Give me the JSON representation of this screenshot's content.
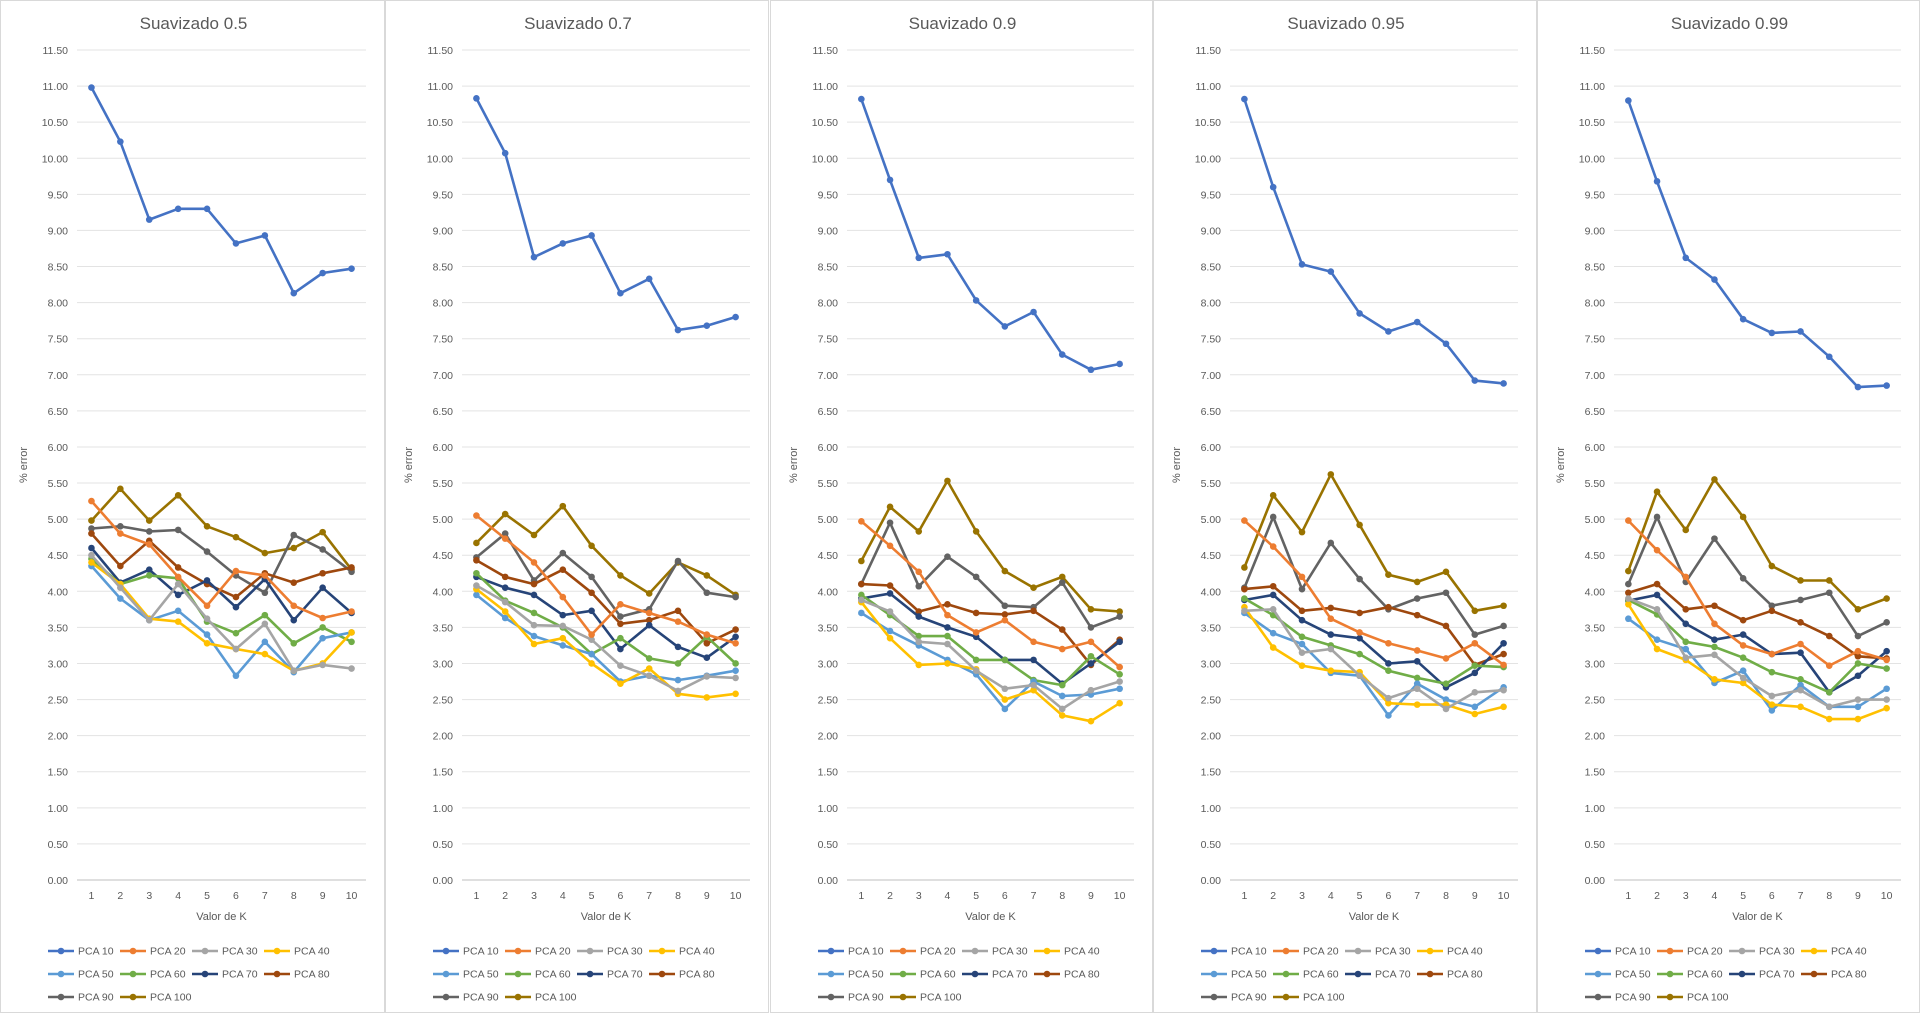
{
  "chart_data": [
    {
      "type": "line",
      "title": "Suavizado 0.5",
      "xlabel": "Valor de K",
      "ylabel": "% error",
      "x": [
        1,
        2,
        3,
        4,
        5,
        6,
        7,
        8,
        9,
        10
      ],
      "ylim": [
        0,
        11.5
      ],
      "yticks": [
        "0.00",
        "0.50",
        "1.00",
        "1.50",
        "2.00",
        "2.50",
        "3.00",
        "3.50",
        "4.00",
        "4.50",
        "5.00",
        "5.50",
        "6.00",
        "6.50",
        "7.00",
        "7.50",
        "8.00",
        "8.50",
        "9.00",
        "9.50",
        "10.00",
        "10.50",
        "11.00",
        "11.50"
      ],
      "grid": true,
      "legend": "bottom",
      "series": [
        {
          "name": "PCA 10",
          "color": "#4472c4",
          "values": [
            10.98,
            10.23,
            9.15,
            9.3,
            9.3,
            8.82,
            8.93,
            8.13,
            8.41,
            8.47
          ]
        },
        {
          "name": "PCA 20",
          "color": "#ed7d31",
          "values": [
            5.25,
            4.8,
            4.65,
            4.2,
            3.8,
            4.28,
            4.22,
            3.8,
            3.63,
            3.72
          ]
        },
        {
          "name": "PCA 30",
          "color": "#a5a5a5",
          "values": [
            4.5,
            4.05,
            3.6,
            4.1,
            3.62,
            3.2,
            3.55,
            2.9,
            2.98,
            2.93
          ]
        },
        {
          "name": "PCA 40",
          "color": "#ffc000",
          "values": [
            4.4,
            4.1,
            3.62,
            3.58,
            3.28,
            3.2,
            3.13,
            2.9,
            3.0,
            3.43
          ]
        },
        {
          "name": "PCA 50",
          "color": "#5b9bd5",
          "values": [
            4.35,
            3.9,
            3.6,
            3.73,
            3.4,
            2.83,
            3.3,
            2.88,
            3.35,
            3.43
          ]
        },
        {
          "name": "PCA 60",
          "color": "#70ad47",
          "values": [
            4.45,
            4.1,
            4.22,
            4.18,
            3.58,
            3.42,
            3.67,
            3.28,
            3.5,
            3.3
          ]
        },
        {
          "name": "PCA 70",
          "color": "#264478",
          "values": [
            4.6,
            4.12,
            4.3,
            3.95,
            4.15,
            3.78,
            4.17,
            3.6,
            4.05,
            3.7
          ]
        },
        {
          "name": "PCA 80",
          "color": "#9e480e",
          "values": [
            4.8,
            4.35,
            4.7,
            4.33,
            4.1,
            3.92,
            4.25,
            4.12,
            4.25,
            4.33
          ]
        },
        {
          "name": "PCA 90",
          "color": "#636363",
          "values": [
            4.87,
            4.9,
            4.83,
            4.85,
            4.55,
            4.22,
            3.98,
            4.78,
            4.58,
            4.27
          ]
        },
        {
          "name": "PCA 100",
          "color": "#997300",
          "values": [
            4.98,
            5.42,
            4.98,
            5.33,
            4.9,
            4.75,
            4.53,
            4.6,
            4.82,
            4.3
          ]
        }
      ]
    },
    {
      "type": "line",
      "title": "Suavizado 0.7",
      "xlabel": "Valor de K",
      "ylabel": "% error",
      "x": [
        1,
        2,
        3,
        4,
        5,
        6,
        7,
        8,
        9,
        10
      ],
      "ylim": [
        0,
        11.5
      ],
      "yticks": [
        "0.00",
        "0.50",
        "1.00",
        "1.50",
        "2.00",
        "2.50",
        "3.00",
        "3.50",
        "4.00",
        "4.50",
        "5.00",
        "5.50",
        "6.00",
        "6.50",
        "7.00",
        "7.50",
        "8.00",
        "8.50",
        "9.00",
        "9.50",
        "10.00",
        "10.50",
        "11.00",
        "11.50"
      ],
      "grid": true,
      "legend": "bottom",
      "series": [
        {
          "name": "PCA 10",
          "color": "#4472c4",
          "values": [
            10.83,
            10.07,
            8.63,
            8.82,
            8.93,
            8.13,
            8.33,
            7.62,
            7.68,
            7.8
          ]
        },
        {
          "name": "PCA 20",
          "color": "#ed7d31",
          "values": [
            5.05,
            4.73,
            4.4,
            3.92,
            3.4,
            3.82,
            3.7,
            3.58,
            3.4,
            3.28
          ]
        },
        {
          "name": "PCA 30",
          "color": "#a5a5a5",
          "values": [
            4.08,
            3.85,
            3.53,
            3.52,
            3.33,
            2.97,
            2.83,
            2.62,
            2.82,
            2.8
          ]
        },
        {
          "name": "PCA 40",
          "color": "#ffc000",
          "values": [
            4.03,
            3.72,
            3.27,
            3.35,
            3.0,
            2.72,
            2.93,
            2.58,
            2.53,
            2.58
          ]
        },
        {
          "name": "PCA 50",
          "color": "#5b9bd5",
          "values": [
            3.95,
            3.63,
            3.38,
            3.25,
            3.13,
            2.75,
            2.83,
            2.77,
            2.83,
            2.9
          ]
        },
        {
          "name": "PCA 60",
          "color": "#70ad47",
          "values": [
            4.25,
            3.87,
            3.7,
            3.5,
            3.13,
            3.35,
            3.07,
            3.0,
            3.37,
            3.0
          ]
        },
        {
          "name": "PCA 70",
          "color": "#264478",
          "values": [
            4.2,
            4.05,
            3.95,
            3.67,
            3.73,
            3.2,
            3.53,
            3.23,
            3.08,
            3.37
          ]
        },
        {
          "name": "PCA 80",
          "color": "#9e480e",
          "values": [
            4.43,
            4.2,
            4.1,
            4.3,
            3.98,
            3.55,
            3.6,
            3.73,
            3.28,
            3.47
          ]
        },
        {
          "name": "PCA 90",
          "color": "#636363",
          "values": [
            4.47,
            4.8,
            4.15,
            4.53,
            4.2,
            3.65,
            3.75,
            4.42,
            3.98,
            3.92
          ]
        },
        {
          "name": "PCA 100",
          "color": "#997300",
          "values": [
            4.67,
            5.07,
            4.78,
            5.18,
            4.63,
            4.22,
            3.97,
            4.4,
            4.22,
            3.95
          ]
        }
      ]
    },
    {
      "type": "line",
      "title": "Suavizado 0.9",
      "xlabel": "Valor de K",
      "ylabel": "% error",
      "x": [
        1,
        2,
        3,
        4,
        5,
        6,
        7,
        8,
        9,
        10
      ],
      "ylim": [
        0,
        11.5
      ],
      "yticks": [
        "0.00",
        "0.50",
        "1.00",
        "1.50",
        "2.00",
        "2.50",
        "3.00",
        "3.50",
        "4.00",
        "4.50",
        "5.00",
        "5.50",
        "6.00",
        "6.50",
        "7.00",
        "7.50",
        "8.00",
        "8.50",
        "9.00",
        "9.50",
        "10.00",
        "10.50",
        "11.00",
        "11.50"
      ],
      "grid": true,
      "legend": "bottom",
      "series": [
        {
          "name": "PCA 10",
          "color": "#4472c4",
          "values": [
            10.82,
            9.7,
            8.62,
            8.67,
            8.03,
            7.67,
            7.87,
            7.28,
            7.07,
            7.15
          ]
        },
        {
          "name": "PCA 20",
          "color": "#ed7d31",
          "values": [
            4.97,
            4.63,
            4.27,
            3.67,
            3.43,
            3.6,
            3.3,
            3.2,
            3.3,
            2.95
          ]
        },
        {
          "name": "PCA 30",
          "color": "#a5a5a5",
          "values": [
            3.88,
            3.72,
            3.3,
            3.27,
            2.9,
            2.65,
            2.7,
            2.37,
            2.63,
            2.75
          ]
        },
        {
          "name": "PCA 40",
          "color": "#ffc000",
          "values": [
            3.85,
            3.35,
            2.98,
            3.0,
            2.92,
            2.5,
            2.63,
            2.28,
            2.2,
            2.45
          ]
        },
        {
          "name": "PCA 50",
          "color": "#5b9bd5",
          "values": [
            3.7,
            3.45,
            3.25,
            3.05,
            2.85,
            2.37,
            2.75,
            2.55,
            2.57,
            2.65
          ]
        },
        {
          "name": "PCA 60",
          "color": "#70ad47",
          "values": [
            3.95,
            3.67,
            3.38,
            3.38,
            3.05,
            3.05,
            2.77,
            2.7,
            3.1,
            2.85
          ]
        },
        {
          "name": "PCA 70",
          "color": "#264478",
          "values": [
            3.9,
            3.97,
            3.65,
            3.5,
            3.37,
            3.05,
            3.05,
            2.72,
            3.0,
            3.3
          ]
        },
        {
          "name": "PCA 80",
          "color": "#9e480e",
          "values": [
            4.1,
            4.08,
            3.72,
            3.82,
            3.7,
            3.68,
            3.73,
            3.47,
            2.98,
            3.33
          ]
        },
        {
          "name": "PCA 90",
          "color": "#636363",
          "values": [
            4.1,
            4.95,
            4.07,
            4.48,
            4.2,
            3.8,
            3.78,
            4.12,
            3.5,
            3.65
          ]
        },
        {
          "name": "PCA 100",
          "color": "#997300",
          "values": [
            4.42,
            5.17,
            4.83,
            5.53,
            4.83,
            4.28,
            4.05,
            4.2,
            3.75,
            3.72
          ]
        }
      ]
    },
    {
      "type": "line",
      "title": "Suavizado 0.95",
      "xlabel": "Valor de K",
      "ylabel": "% error",
      "x": [
        1,
        2,
        3,
        4,
        5,
        6,
        7,
        8,
        9,
        10
      ],
      "ylim": [
        0,
        11.5
      ],
      "yticks": [
        "0.00",
        "0.50",
        "1.00",
        "1.50",
        "2.00",
        "2.50",
        "3.00",
        "3.50",
        "4.00",
        "4.50",
        "5.00",
        "5.50",
        "6.00",
        "6.50",
        "7.00",
        "7.50",
        "8.00",
        "8.50",
        "9.00",
        "9.50",
        "10.00",
        "10.50",
        "11.00",
        "11.50"
      ],
      "grid": true,
      "legend": "bottom",
      "series": [
        {
          "name": "PCA 10",
          "color": "#4472c4",
          "values": [
            10.82,
            9.6,
            8.53,
            8.43,
            7.85,
            7.6,
            7.73,
            7.43,
            6.92,
            6.88
          ]
        },
        {
          "name": "PCA 20",
          "color": "#ed7d31",
          "values": [
            4.98,
            4.62,
            4.2,
            3.62,
            3.43,
            3.28,
            3.18,
            3.07,
            3.28,
            2.98
          ]
        },
        {
          "name": "PCA 30",
          "color": "#a5a5a5",
          "values": [
            3.73,
            3.75,
            3.15,
            3.2,
            2.83,
            2.52,
            2.65,
            2.37,
            2.6,
            2.63
          ]
        },
        {
          "name": "PCA 40",
          "color": "#ffc000",
          "values": [
            3.78,
            3.22,
            2.97,
            2.9,
            2.88,
            2.45,
            2.43,
            2.43,
            2.3,
            2.4
          ]
        },
        {
          "name": "PCA 50",
          "color": "#5b9bd5",
          "values": [
            3.7,
            3.42,
            3.27,
            2.87,
            2.83,
            2.28,
            2.72,
            2.5,
            2.4,
            2.67
          ]
        },
        {
          "name": "PCA 60",
          "color": "#70ad47",
          "values": [
            3.9,
            3.67,
            3.37,
            3.25,
            3.13,
            2.9,
            2.8,
            2.72,
            2.97,
            2.95
          ]
        },
        {
          "name": "PCA 70",
          "color": "#264478",
          "values": [
            3.88,
            3.95,
            3.6,
            3.4,
            3.35,
            3.0,
            3.03,
            2.67,
            2.87,
            3.28
          ]
        },
        {
          "name": "PCA 80",
          "color": "#9e480e",
          "values": [
            4.03,
            4.07,
            3.73,
            3.77,
            3.7,
            3.78,
            3.67,
            3.52,
            2.98,
            3.13
          ]
        },
        {
          "name": "PCA 90",
          "color": "#636363",
          "values": [
            4.05,
            5.03,
            4.03,
            4.67,
            4.17,
            3.75,
            3.9,
            3.98,
            3.4,
            3.52
          ]
        },
        {
          "name": "PCA 100",
          "color": "#997300",
          "values": [
            4.33,
            5.33,
            4.82,
            5.62,
            4.92,
            4.23,
            4.13,
            4.27,
            3.73,
            3.8
          ]
        }
      ]
    },
    {
      "type": "line",
      "title": "Suavizado 0.99",
      "xlabel": "Valor de K",
      "ylabel": "% error",
      "x": [
        1,
        2,
        3,
        4,
        5,
        6,
        7,
        8,
        9,
        10
      ],
      "ylim": [
        0,
        11.5
      ],
      "yticks": [
        "0.00",
        "0.50",
        "1.00",
        "1.50",
        "2.00",
        "2.50",
        "3.00",
        "3.50",
        "4.00",
        "4.50",
        "5.00",
        "5.50",
        "6.00",
        "6.50",
        "7.00",
        "7.50",
        "8.00",
        "8.50",
        "9.00",
        "9.50",
        "10.00",
        "10.50",
        "11.00",
        "11.50"
      ],
      "grid": true,
      "legend": "bottom",
      "series": [
        {
          "name": "PCA 10",
          "color": "#4472c4",
          "values": [
            10.8,
            9.68,
            8.62,
            8.32,
            7.77,
            7.58,
            7.6,
            7.25,
            6.83,
            6.85
          ]
        },
        {
          "name": "PCA 20",
          "color": "#ed7d31",
          "values": [
            4.98,
            4.57,
            4.2,
            3.55,
            3.25,
            3.13,
            3.27,
            2.97,
            3.17,
            3.05
          ]
        },
        {
          "name": "PCA 30",
          "color": "#a5a5a5",
          "values": [
            3.9,
            3.75,
            3.08,
            3.12,
            2.8,
            2.55,
            2.63,
            2.4,
            2.5,
            2.5
          ]
        },
        {
          "name": "PCA 40",
          "color": "#ffc000",
          "values": [
            3.82,
            3.2,
            3.05,
            2.78,
            2.73,
            2.43,
            2.4,
            2.23,
            2.23,
            2.38
          ]
        },
        {
          "name": "PCA 50",
          "color": "#5b9bd5",
          "values": [
            3.62,
            3.33,
            3.2,
            2.73,
            2.9,
            2.35,
            2.7,
            2.4,
            2.4,
            2.65
          ]
        },
        {
          "name": "PCA 60",
          "color": "#70ad47",
          "values": [
            3.88,
            3.68,
            3.3,
            3.23,
            3.08,
            2.88,
            2.78,
            2.6,
            3.0,
            2.93
          ]
        },
        {
          "name": "PCA 70",
          "color": "#264478",
          "values": [
            3.87,
            3.95,
            3.55,
            3.33,
            3.4,
            3.13,
            3.15,
            2.6,
            2.83,
            3.17
          ]
        },
        {
          "name": "PCA 80",
          "color": "#9e480e",
          "values": [
            3.98,
            4.1,
            3.75,
            3.8,
            3.6,
            3.73,
            3.57,
            3.38,
            3.1,
            3.07
          ]
        },
        {
          "name": "PCA 90",
          "color": "#636363",
          "values": [
            4.1,
            5.03,
            4.13,
            4.73,
            4.18,
            3.8,
            3.88,
            3.98,
            3.38,
            3.57
          ]
        },
        {
          "name": "PCA 100",
          "color": "#997300",
          "values": [
            4.28,
            5.38,
            4.85,
            5.55,
            5.03,
            4.35,
            4.15,
            4.15,
            3.75,
            3.9
          ]
        }
      ]
    }
  ]
}
